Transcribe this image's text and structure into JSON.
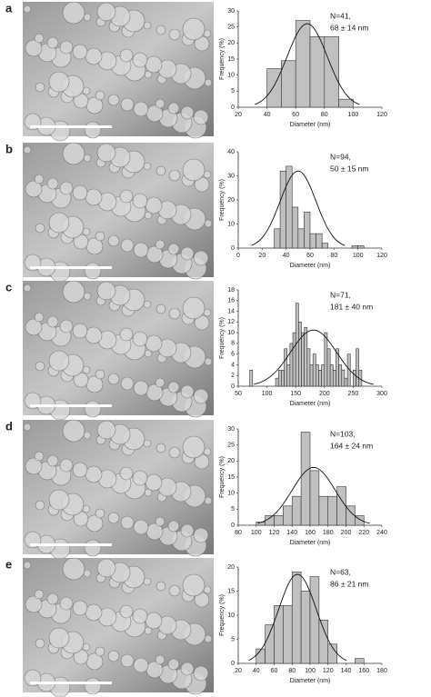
{
  "chart_data": [
    {
      "type": "histogram",
      "panel": "a",
      "xlabel": "Diameter (nm)",
      "ylabel": "Frequency (%)",
      "annotations": [
        "N=41,",
        "68 ± 14 nm"
      ],
      "bins": [
        40,
        50,
        60,
        70,
        80,
        90,
        100
      ],
      "values": [
        12,
        14.5,
        27,
        22,
        22,
        2.5
      ],
      "color": "#c0c0c0",
      "fit": {
        "mean": 68,
        "sd": 14,
        "peak": 26
      },
      "xlim": [
        20,
        120
      ],
      "xticks": [
        20,
        40,
        60,
        80,
        100,
        120
      ],
      "ylim": [
        0,
        30
      ],
      "yticks": [
        0,
        5,
        10,
        15,
        20,
        25,
        30
      ]
    },
    {
      "type": "histogram",
      "panel": "b",
      "xlabel": "Diameter (nm)",
      "ylabel": "Frequency (%)",
      "annotations": [
        "N=94,",
        "50 ± 15 nm"
      ],
      "bins": [
        30,
        35,
        40,
        45,
        50,
        55,
        60,
        65,
        70,
        75,
        80,
        85,
        90,
        95,
        100,
        105,
        110
      ],
      "values": [
        8,
        32,
        34,
        17,
        8,
        15,
        6,
        6,
        2,
        0,
        0,
        0,
        0,
        1,
        1,
        0
      ],
      "color": "#c0c0c0",
      "fit": {
        "mean": 50,
        "sd": 15,
        "peak": 32
      },
      "xlim": [
        0,
        120
      ],
      "xticks": [
        0,
        20,
        40,
        60,
        80,
        100,
        120
      ],
      "ylim": [
        0,
        40
      ],
      "yticks": [
        0,
        10,
        20,
        30,
        40
      ]
    },
    {
      "type": "histogram",
      "panel": "c",
      "xlabel": "Diameter (nm)",
      "ylabel": "Frequency (%)",
      "annotations": [
        "N=71,",
        "181 ± 40 nm"
      ],
      "bins": [
        70,
        75,
        80,
        85,
        90,
        95,
        100,
        105,
        110,
        115,
        120,
        125,
        130,
        135,
        140,
        145,
        150,
        155,
        160,
        165,
        170,
        175,
        180,
        185,
        190,
        195,
        200,
        205,
        210,
        215,
        220,
        225,
        230,
        235,
        240,
        245,
        250,
        255,
        260,
        265
      ],
      "values": [
        3,
        0,
        0,
        0,
        0,
        0,
        0,
        0,
        0,
        1.5,
        3,
        3,
        7,
        4,
        8,
        10,
        15.5,
        12,
        10,
        11,
        7,
        4,
        6,
        4,
        3,
        4,
        10,
        7,
        4,
        3,
        7,
        4,
        3,
        1.5,
        6,
        0,
        3,
        7,
        3
      ],
      "color": "#c0c0c0",
      "fit": {
        "mean": 181,
        "sd": 40,
        "peak": 10.5
      },
      "xlim": [
        50,
        300
      ],
      "xticks": [
        50,
        100,
        150,
        200,
        250,
        300
      ],
      "ylim": [
        0,
        18
      ],
      "yticks": [
        0,
        2,
        4,
        6,
        8,
        10,
        12,
        14,
        16,
        18
      ]
    },
    {
      "type": "histogram",
      "panel": "d",
      "xlabel": "Diameter (nm)",
      "ylabel": "Frequency (%)",
      "annotations": [
        "N=103,",
        "164 ± 24 nm"
      ],
      "bins": [
        100,
        110,
        120,
        130,
        140,
        150,
        160,
        170,
        180,
        190,
        200,
        210,
        220
      ],
      "values": [
        1,
        3,
        3,
        6,
        9,
        29,
        17,
        9,
        9,
        12,
        6,
        3
      ],
      "color": "#c0c0c0",
      "fit": {
        "mean": 164,
        "sd": 24,
        "peak": 18
      },
      "xlim": [
        80,
        240
      ],
      "xticks": [
        80,
        100,
        120,
        140,
        160,
        180,
        200,
        220,
        240
      ],
      "ylim": [
        0,
        30
      ],
      "yticks": [
        0,
        5,
        10,
        15,
        20,
        25,
        30
      ]
    },
    {
      "type": "histogram",
      "panel": "e",
      "xlabel": "Diameter (nm)",
      "ylabel": "Frequency (%)",
      "annotations": [
        "N=63,",
        "86 ± 21 nm"
      ],
      "bins": [
        40,
        50,
        60,
        70,
        80,
        90,
        100,
        110,
        120,
        130,
        140,
        150,
        160
      ],
      "values": [
        3,
        8,
        12,
        12,
        19,
        15,
        18,
        9,
        4,
        0,
        0,
        1
      ],
      "color": "#c0c0c0",
      "fit": {
        "mean": 86,
        "sd": 21,
        "peak": 18.5
      },
      "xlim": [
        20,
        180
      ],
      "xticks": [
        20,
        40,
        60,
        80,
        100,
        120,
        140,
        160,
        180
      ],
      "ylim": [
        0,
        20
      ],
      "yticks": [
        0,
        5,
        10,
        15,
        20
      ]
    }
  ]
}
